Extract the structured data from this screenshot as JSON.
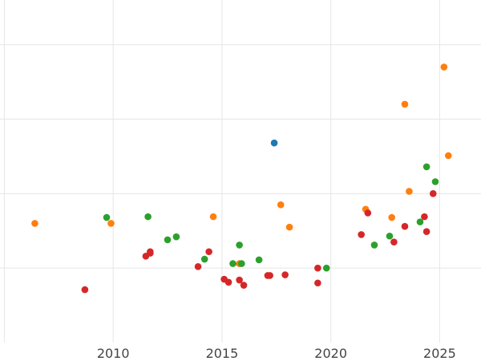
{
  "chart_data": {
    "type": "scatter",
    "title": "",
    "xlabel": "",
    "ylabel": "",
    "xlim": [
      2004.8,
      2026.9
    ],
    "ylim": [
      -1.0,
      3.6
    ],
    "grid": true,
    "x_ticks": [
      2010,
      2015,
      2020,
      2025
    ],
    "x_tick_labels": [
      "2010",
      "2015",
      "2020",
      "2025"
    ],
    "y_ticks": [
      0,
      1,
      2,
      3
    ],
    "series": [
      {
        "color": "#1f77b4",
        "points": [
          {
            "x": 2017.4,
            "y": 1.68
          }
        ]
      },
      {
        "color": "#ff7f0e",
        "points": [
          {
            "x": 2006.4,
            "y": 0.6
          },
          {
            "x": 2009.9,
            "y": 0.6
          },
          {
            "x": 2014.6,
            "y": 0.69
          },
          {
            "x": 2015.8,
            "y": 0.06
          },
          {
            "x": 2017.7,
            "y": 0.85
          },
          {
            "x": 2018.1,
            "y": 0.55
          },
          {
            "x": 2021.6,
            "y": 0.79
          },
          {
            "x": 2022.8,
            "y": 0.68
          },
          {
            "x": 2023.4,
            "y": 2.2
          },
          {
            "x": 2023.6,
            "y": 1.03
          },
          {
            "x": 2025.2,
            "y": 2.7
          },
          {
            "x": 2025.4,
            "y": 1.51
          }
        ]
      },
      {
        "color": "#2ca02c",
        "points": [
          {
            "x": 2009.7,
            "y": 0.68
          },
          {
            "x": 2011.6,
            "y": 0.69
          },
          {
            "x": 2012.5,
            "y": 0.38
          },
          {
            "x": 2012.9,
            "y": 0.42
          },
          {
            "x": 2014.2,
            "y": 0.12
          },
          {
            "x": 2015.5,
            "y": 0.06
          },
          {
            "x": 2015.8,
            "y": 0.31
          },
          {
            "x": 2015.9,
            "y": 0.06
          },
          {
            "x": 2016.7,
            "y": 0.11
          },
          {
            "x": 2019.8,
            "y": 0.0
          },
          {
            "x": 2022.0,
            "y": 0.31
          },
          {
            "x": 2022.7,
            "y": 0.43
          },
          {
            "x": 2024.1,
            "y": 0.62
          },
          {
            "x": 2024.4,
            "y": 1.36
          },
          {
            "x": 2024.8,
            "y": 1.16
          }
        ]
      },
      {
        "color": "#d62728",
        "points": [
          {
            "x": 2008.7,
            "y": -0.29
          },
          {
            "x": 2011.5,
            "y": 0.16
          },
          {
            "x": 2011.7,
            "y": 0.2
          },
          {
            "x": 2011.7,
            "y": 0.22
          },
          {
            "x": 2013.9,
            "y": 0.02
          },
          {
            "x": 2014.4,
            "y": 0.22
          },
          {
            "x": 2015.1,
            "y": -0.15
          },
          {
            "x": 2015.3,
            "y": -0.19
          },
          {
            "x": 2015.8,
            "y": -0.16
          },
          {
            "x": 2016.0,
            "y": -0.23
          },
          {
            "x": 2017.1,
            "y": -0.1
          },
          {
            "x": 2017.2,
            "y": -0.1
          },
          {
            "x": 2017.9,
            "y": -0.09
          },
          {
            "x": 2019.4,
            "y": 0.0
          },
          {
            "x": 2019.4,
            "y": -0.2
          },
          {
            "x": 2021.4,
            "y": 0.45
          },
          {
            "x": 2021.7,
            "y": 0.74
          },
          {
            "x": 2022.9,
            "y": 0.35
          },
          {
            "x": 2023.4,
            "y": 0.56
          },
          {
            "x": 2024.3,
            "y": 0.69
          },
          {
            "x": 2024.4,
            "y": 0.49
          },
          {
            "x": 2024.7,
            "y": 1.0
          }
        ]
      }
    ]
  }
}
